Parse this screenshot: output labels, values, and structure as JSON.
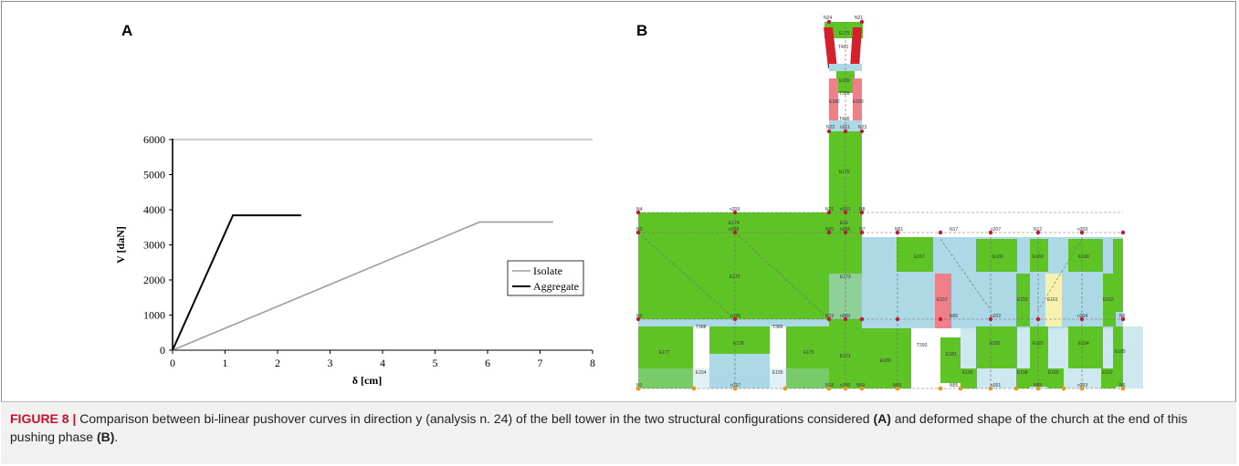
{
  "figure": {
    "panel_a_label": "A",
    "panel_b_label": "B",
    "caption": {
      "label": "FIGURE 8 |",
      "text1": " Comparison between bi-linear pushover curves in direction y (analysis n. 24) of the bell tower in the two structural configurations considered ",
      "bold1": "(A)",
      "text2": " and deformed shape of the church at the end of this pushing phase ",
      "bold2": "(B)",
      "text3": "."
    }
  },
  "chart_data": {
    "type": "line",
    "title": "",
    "xlabel": "δ [cm]",
    "ylabel": "V [daN]",
    "xlim": [
      0,
      8
    ],
    "ylim": [
      0,
      6000
    ],
    "x_ticks": [
      0,
      1,
      2,
      3,
      4,
      5,
      6,
      7,
      8
    ],
    "y_ticks": [
      0,
      1000,
      2000,
      3000,
      4000,
      5000,
      6000
    ],
    "grid": {
      "horizontal_top_line": true,
      "vertical": false
    },
    "legend_position": "right",
    "series": [
      {
        "name": "Isolate",
        "color": "#9e9e9e",
        "x": [
          0,
          5.85,
          7.25
        ],
        "y": [
          0,
          3650,
          3650
        ]
      },
      {
        "name": "Aggregate",
        "color": "#000000",
        "x": [
          0,
          1.15,
          2.45
        ],
        "y": [
          0,
          3840,
          3840
        ]
      }
    ]
  },
  "model": {
    "colors": {
      "green": "#5ec425",
      "lightblue": "#add8e6",
      "red": "#d41f2c",
      "pink": "#ef7f89",
      "yellow": "#f7f1b0",
      "node": "#c0183c",
      "base_node": "#e59a24"
    },
    "labels": {
      "top1": "N24",
      "top2": "N21",
      "e175": "E175",
      "t401": "T401",
      "e169": "E169",
      "e182": "E182",
      "e183": "E183",
      "t399": "T399",
      "t400": "T400",
      "n22": "N22",
      "n211": "n211",
      "n23": "N23",
      "e176": "E176",
      "n4": "N4",
      "n209": "n209",
      "n21b": "N21",
      "n210": "n210",
      "n8": "N8",
      "e174": "E174",
      "n208": "n208",
      "e16": "E16",
      "n3": "N3",
      "n20": "N20",
      "n206": "n206",
      "n7": "N7",
      "n61": "N61",
      "n17": "N17",
      "n207": "n207",
      "n12": "N12",
      "n209b": "n209",
      "e172": "E172",
      "e173": "E173",
      "e167": "E167",
      "e166": "E166",
      "e169b": "E169",
      "e190": "E190",
      "e157": "E157",
      "e159": "E159",
      "e161": "E161",
      "e163": "E163",
      "n2": "N2",
      "n196": "n196",
      "n19": "N19",
      "n200": "n200",
      "n6": "N6",
      "n60": "N60",
      "n202": "n202",
      "n204": "n204",
      "t388": "T388",
      "t389": "T389",
      "t393": "T393",
      "e177": "E177",
      "e178": "E178",
      "e179": "E179",
      "e171": "E171",
      "e180": "E180",
      "e181": "E181",
      "e182b": "E182",
      "e183b": "E183",
      "e184": "E184",
      "e185": "E185",
      "e154": "E154",
      "e155": "E155",
      "e156": "E156",
      "e158": "E158",
      "e160": "E160",
      "e162": "E162",
      "n1": "N1",
      "n197": "n197",
      "n18": "N18",
      "n199": "n199",
      "n59": "N59",
      "n55": "N55",
      "n201": "n201",
      "n203": "n203",
      "n5": "N5"
    }
  }
}
